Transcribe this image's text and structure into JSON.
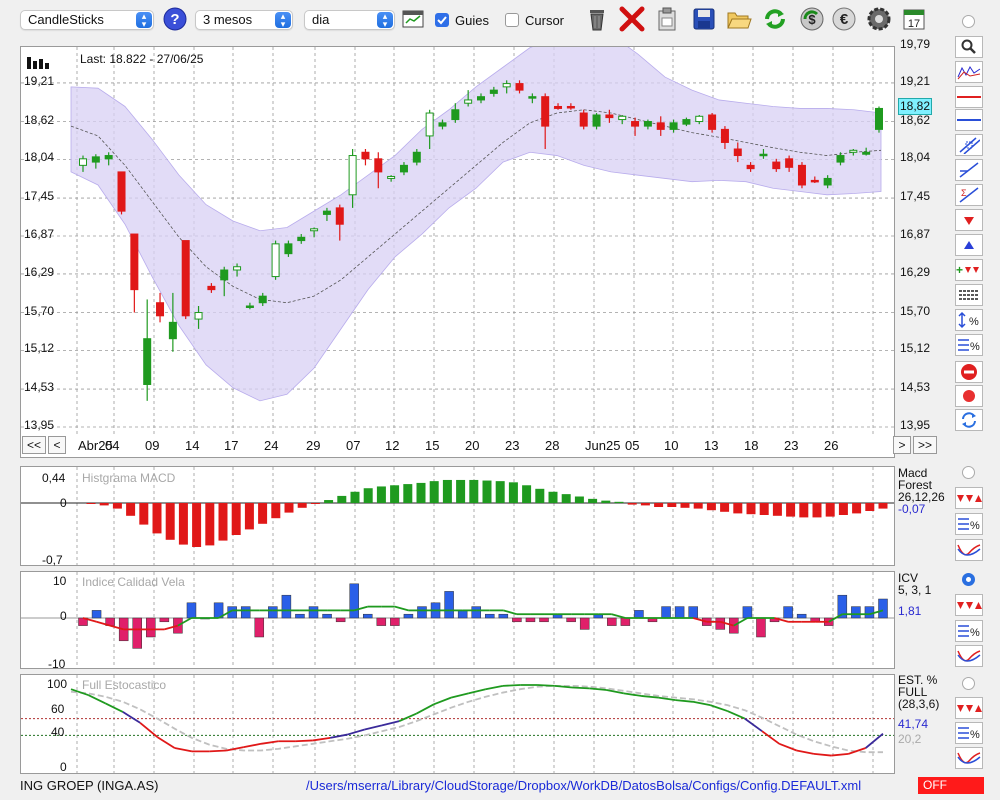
{
  "toolbar": {
    "chart_type": "CandleSticks",
    "period": "3 mesos",
    "interval": "dia",
    "guides_label": "Guies",
    "guides_checked": true,
    "cursor_label": "Cursor",
    "cursor_checked": false,
    "icons": [
      "help-icon",
      "calendar-grid-icon",
      "trash-icon",
      "delete-red-x-icon",
      "clipboard-icon",
      "save-icon",
      "open-folder-icon",
      "refresh-icon",
      "dollar-sync-icon",
      "euro-icon",
      "gear-icon",
      "calendar-17-icon"
    ],
    "calendar_day": "17"
  },
  "main": {
    "last_text": "Last: 18.822 - 27/06/25",
    "last_badge": "18,82",
    "y_ticks": [
      "19,21",
      "18,62",
      "18,04",
      "17,45",
      "16,87",
      "16,29",
      "15,70",
      "15,12",
      "14,53",
      "13,95"
    ],
    "y_top_partial": "19,79",
    "nav": {
      "first": "<<",
      "prev": "<",
      "next": ">",
      "last": ">>"
    },
    "x_labels": [
      "Abr25",
      "04",
      "09",
      "14",
      "17",
      "24",
      "29",
      "07",
      "12",
      "15",
      "20",
      "23",
      "28",
      "Jun25",
      "05",
      "10",
      "13",
      "18",
      "23",
      "26"
    ]
  },
  "macd": {
    "title": "Histgrama MACD",
    "y_top": "0,44",
    "y_zero": "0",
    "y_bottom": "-0,7",
    "name1": "Macd",
    "name2": "Forest",
    "params": "26,12,26",
    "value": "-0,07"
  },
  "icv": {
    "title": "Indice Calidad Vela",
    "y_top": "10",
    "y_zero": "0",
    "y_bottom": "-10",
    "name": "ICV",
    "params": "5, 3, 1",
    "value": "1,81"
  },
  "stoch": {
    "title": "Full Estocastico",
    "y_ticks": [
      "100",
      "60",
      "40",
      "0"
    ],
    "name1": "EST. %",
    "name2": "FULL",
    "params": "(28,3,6)",
    "value1": "41,74",
    "value2": "20,2"
  },
  "status": {
    "ticker": "ING GROEP (INGA.AS)",
    "path": "/Users/mserra/Library/CloudStorage/Dropbox/WorkDB/DatosBolsa/Configs/Config.DEFAULT.xml",
    "off_label": "OFF"
  },
  "colors": {
    "up": "#1f9a1f",
    "down": "#e01818",
    "band": "#d8d0f4",
    "accent": "#3a2fc0",
    "stoch_green": "#1f9a1f",
    "stoch_red": "#e01818"
  },
  "chart_data": [
    {
      "type": "candlestick",
      "title": "",
      "ylim": [
        13.95,
        19.79
      ],
      "x_tick_labels": [
        "Abr25",
        "04",
        "09",
        "14",
        "17",
        "24",
        "29",
        "07",
        "12",
        "15",
        "20",
        "23",
        "28",
        "Jun25",
        "05",
        "10",
        "13",
        "18",
        "23",
        "26"
      ],
      "ohlc": [
        [
          17.95,
          18.1,
          17.85,
          18.05
        ],
        [
          18.0,
          18.12,
          17.9,
          18.08
        ],
        [
          18.05,
          18.15,
          17.95,
          18.1
        ],
        [
          17.85,
          17.85,
          17.2,
          17.25
        ],
        [
          16.9,
          16.9,
          15.7,
          16.05
        ],
        [
          14.6,
          15.9,
          14.35,
          15.3
        ],
        [
          15.85,
          16.0,
          15.55,
          15.65
        ],
        [
          15.3,
          16.0,
          15.1,
          15.55
        ],
        [
          16.8,
          16.8,
          15.6,
          15.65
        ],
        [
          15.6,
          15.8,
          15.45,
          15.7
        ],
        [
          16.1,
          16.15,
          16.0,
          16.05
        ],
        [
          16.2,
          16.4,
          15.95,
          16.35
        ],
        [
          16.35,
          16.45,
          16.25,
          16.4
        ],
        [
          15.8,
          15.85,
          15.75,
          15.8
        ],
        [
          15.85,
          16.0,
          15.8,
          15.95
        ],
        [
          16.25,
          16.8,
          16.2,
          16.75
        ],
        [
          16.6,
          16.8,
          16.55,
          16.75
        ],
        [
          16.8,
          16.9,
          16.75,
          16.85
        ],
        [
          16.95,
          17.0,
          16.85,
          16.98
        ],
        [
          17.2,
          17.3,
          17.1,
          17.25
        ],
        [
          17.3,
          17.35,
          16.8,
          17.05
        ],
        [
          17.5,
          18.2,
          17.3,
          18.1
        ],
        [
          18.15,
          18.2,
          17.95,
          18.05
        ],
        [
          18.05,
          18.15,
          17.6,
          17.85
        ],
        [
          17.75,
          17.8,
          17.7,
          17.78
        ],
        [
          17.85,
          18.0,
          17.8,
          17.95
        ],
        [
          18.0,
          18.2,
          17.95,
          18.15
        ],
        [
          18.4,
          18.8,
          18.2,
          18.75
        ],
        [
          18.55,
          18.65,
          18.5,
          18.6
        ],
        [
          18.65,
          18.9,
          18.6,
          18.8
        ],
        [
          18.9,
          19.1,
          18.85,
          18.95
        ],
        [
          18.95,
          19.05,
          18.9,
          19.0
        ],
        [
          19.05,
          19.15,
          19.0,
          19.1
        ],
        [
          19.15,
          19.25,
          19.05,
          19.2
        ],
        [
          19.2,
          19.25,
          19.05,
          19.1
        ],
        [
          18.99,
          19.05,
          18.9,
          19.0
        ],
        [
          19.0,
          19.05,
          18.2,
          18.55
        ],
        [
          18.85,
          18.9,
          18.8,
          18.82
        ],
        [
          18.85,
          18.9,
          18.8,
          18.84
        ],
        [
          18.75,
          18.8,
          18.5,
          18.55
        ],
        [
          18.55,
          18.75,
          18.5,
          18.72
        ],
        [
          18.72,
          18.8,
          18.6,
          18.68
        ],
        [
          18.65,
          18.72,
          18.58,
          18.7
        ],
        [
          18.62,
          18.68,
          18.4,
          18.55
        ],
        [
          18.55,
          18.65,
          18.5,
          18.62
        ],
        [
          18.6,
          18.7,
          18.4,
          18.5
        ],
        [
          18.5,
          18.65,
          18.45,
          18.6
        ],
        [
          18.58,
          18.68,
          18.55,
          18.65
        ],
        [
          18.62,
          18.72,
          18.58,
          18.7
        ],
        [
          18.72,
          18.75,
          18.45,
          18.5
        ],
        [
          18.5,
          18.55,
          18.2,
          18.3
        ],
        [
          18.2,
          18.3,
          18.0,
          18.1
        ],
        [
          17.95,
          18.0,
          17.85,
          17.9
        ],
        [
          18.1,
          18.2,
          18.05,
          18.12
        ],
        [
          18.0,
          18.05,
          17.85,
          17.9
        ],
        [
          18.05,
          18.1,
          17.85,
          17.92
        ],
        [
          17.95,
          18.0,
          17.6,
          17.65
        ],
        [
          17.72,
          17.78,
          17.68,
          17.7
        ],
        [
          17.65,
          17.8,
          17.6,
          17.75
        ],
        [
          18.0,
          18.15,
          17.95,
          18.1
        ],
        [
          18.15,
          18.2,
          18.1,
          18.18
        ],
        [
          18.12,
          18.22,
          18.1,
          18.15
        ],
        [
          18.5,
          18.85,
          18.45,
          18.82
        ]
      ],
      "bollinger": {
        "upper": [
          19.15,
          19.13,
          18.85,
          18.35,
          17.8,
          17.35,
          17.1,
          16.95,
          17.0,
          17.25,
          17.5,
          17.8,
          18.1,
          18.5,
          18.8,
          19.15,
          19.45,
          19.75,
          19.9,
          20.0,
          19.95,
          19.65,
          19.3,
          19.1,
          18.95,
          18.9,
          18.85,
          18.82,
          18.82,
          18.8,
          18.75
        ],
        "lower": [
          17.85,
          17.65,
          17.05,
          16.25,
          15.5,
          14.9,
          14.55,
          14.35,
          14.45,
          14.85,
          15.45,
          16.05,
          16.55,
          16.9,
          17.3,
          17.6,
          18.0,
          18.15,
          18.1,
          17.95,
          17.85,
          17.8,
          17.75,
          17.7,
          17.72,
          17.7,
          17.6,
          17.55,
          17.5,
          17.52,
          17.55
        ],
        "middle": [
          18.55,
          18.4,
          17.95,
          17.4,
          16.85,
          16.4,
          16.1,
          15.9,
          15.85,
          15.95,
          16.2,
          16.55,
          16.9,
          17.25,
          17.6,
          17.95,
          18.3,
          18.6,
          18.75,
          18.8,
          18.75,
          18.65,
          18.55,
          18.45,
          18.38,
          18.3,
          18.22,
          18.15,
          18.1,
          18.15,
          18.18
        ]
      }
    },
    {
      "type": "bar",
      "title": "Histgrama MACD",
      "ylim": [
        -0.7,
        0.44
      ],
      "values": [
        -0.01,
        -0.03,
        -0.07,
        -0.16,
        -0.27,
        -0.38,
        -0.46,
        -0.52,
        -0.55,
        -0.53,
        -0.47,
        -0.4,
        -0.33,
        -0.26,
        -0.19,
        -0.12,
        -0.06,
        -0.01,
        0.05,
        0.12,
        0.19,
        0.25,
        0.28,
        0.3,
        0.32,
        0.34,
        0.37,
        0.39,
        0.39,
        0.39,
        0.38,
        0.37,
        0.35,
        0.3,
        0.24,
        0.19,
        0.15,
        0.11,
        0.07,
        0.04,
        0.02,
        -0.02,
        -0.03,
        -0.05,
        -0.05,
        -0.06,
        -0.07,
        -0.09,
        -0.11,
        -0.13,
        -0.14,
        -0.15,
        -0.16,
        -0.17,
        -0.18,
        -0.18,
        -0.17,
        -0.15,
        -0.13,
        -0.1,
        -0.07
      ]
    },
    {
      "type": "bar",
      "title": "Indice Calidad Vela",
      "ylim": [
        -10,
        10
      ],
      "values": [
        -2,
        2,
        -2,
        -6,
        -8,
        -5,
        -1,
        -4,
        4,
        0,
        4,
        3,
        3,
        -5,
        3,
        6,
        1,
        3,
        1,
        -1,
        9,
        1,
        -2,
        -2,
        1,
        3,
        4,
        7,
        2,
        3,
        1,
        1,
        -1,
        -1,
        -1,
        1,
        -1,
        -3,
        1,
        -2,
        -2,
        2,
        -1,
        3,
        3,
        3,
        -2,
        -3,
        -4,
        3,
        -5,
        -1,
        3,
        1,
        -1,
        -2,
        6,
        3,
        3,
        5
      ],
      "line": [
        0,
        -1,
        -2,
        -3,
        -3,
        -3,
        -3,
        -2,
        0,
        0,
        0,
        2,
        2,
        2,
        2,
        2,
        2,
        2,
        2,
        2,
        2,
        3,
        3,
        3,
        2,
        2,
        2,
        2,
        2,
        2,
        2,
        2,
        1,
        1,
        1,
        1,
        1,
        1,
        1,
        1,
        0,
        0,
        0,
        0,
        0,
        0,
        -1,
        -1,
        -2,
        0,
        0,
        0,
        -1,
        -1,
        -1,
        -1,
        1,
        1,
        1,
        2
      ]
    },
    {
      "type": "line",
      "title": "Full Estocastico",
      "ylim": [
        0,
        100
      ],
      "reference_lines": [
        60,
        40
      ],
      "series": [
        {
          "values": [
            95,
            88,
            78,
            68,
            55,
            38,
            25,
            21,
            21,
            22,
            26,
            30,
            33,
            33,
            34,
            37,
            41,
            47,
            52,
            57,
            66,
            77,
            85,
            90,
            95,
            99,
            100,
            100,
            99,
            97,
            96,
            94,
            90,
            87,
            85,
            82,
            80,
            76,
            69,
            60,
            45,
            30,
            22,
            18,
            16,
            18,
            25,
            42
          ],
          "colors": "green/red/blue"
        },
        {
          "values": [
            92,
            90,
            86,
            80,
            71,
            60,
            48,
            37,
            29,
            24,
            22,
            22,
            24,
            27,
            30,
            33,
            36,
            40,
            45,
            50,
            57,
            65,
            73,
            80,
            86,
            91,
            95,
            98,
            99,
            99,
            98,
            96,
            93,
            90,
            87,
            85,
            83,
            80,
            76,
            70,
            61,
            51,
            41,
            33,
            27,
            22,
            20,
            20
          ]
        }
      ]
    }
  ]
}
